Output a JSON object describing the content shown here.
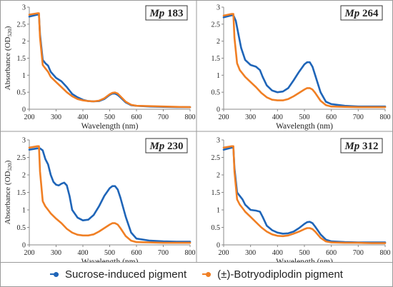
{
  "chart_data": [
    {
      "type": "line",
      "title_italic": "Mp",
      "title_num": "183",
      "xlabel": "Wavelength (nm)",
      "ylabel": "Absorbance (OD",
      "ylabel_sub": "520",
      "ylabel_end": ")",
      "xlim": [
        200,
        800
      ],
      "ylim": [
        0,
        3
      ],
      "xticks": [
        "200",
        "300",
        "400",
        "500",
        "600",
        "700",
        "800"
      ],
      "yticks": [
        "0",
        "0.5",
        "1",
        "1.5",
        "2",
        "2.5",
        "3"
      ],
      "series": [
        {
          "name": "Sucrose-induced pigment",
          "x": [
            200,
            230,
            236,
            240,
            250,
            260,
            270,
            280,
            300,
            320,
            340,
            360,
            380,
            400,
            420,
            440,
            460,
            480,
            500,
            510,
            520,
            530,
            540,
            560,
            580,
            600,
            650,
            700,
            750,
            800
          ],
          "y": [
            2.72,
            2.78,
            2.78,
            2.2,
            1.45,
            1.35,
            1.28,
            1.1,
            0.92,
            0.82,
            0.65,
            0.45,
            0.35,
            0.28,
            0.24,
            0.23,
            0.24,
            0.3,
            0.42,
            0.46,
            0.46,
            0.42,
            0.35,
            0.2,
            0.12,
            0.1,
            0.08,
            0.07,
            0.06,
            0.06
          ]
        },
        {
          "name": "(±)-Botryodiplodin pigment",
          "x": [
            200,
            230,
            236,
            240,
            250,
            260,
            270,
            280,
            300,
            320,
            340,
            360,
            380,
            400,
            420,
            440,
            460,
            480,
            500,
            510,
            520,
            530,
            540,
            560,
            580,
            600,
            650,
            700,
            750,
            800
          ],
          "y": [
            2.78,
            2.82,
            2.82,
            2.1,
            1.3,
            1.2,
            1.1,
            0.95,
            0.8,
            0.65,
            0.5,
            0.38,
            0.3,
            0.26,
            0.24,
            0.23,
            0.25,
            0.32,
            0.44,
            0.48,
            0.49,
            0.46,
            0.38,
            0.22,
            0.13,
            0.1,
            0.09,
            0.08,
            0.07,
            0.06
          ]
        }
      ]
    },
    {
      "type": "line",
      "title_italic": "Mp",
      "title_num": "264",
      "xlabel": "Wavelength (nm)",
      "ylabel": "",
      "xlim": [
        200,
        800
      ],
      "ylim": [
        0,
        3
      ],
      "xticks": [
        "200",
        "300",
        "400",
        "500",
        "600",
        "700",
        "800"
      ],
      "yticks": [
        "0",
        "0.5",
        "1",
        "1.5",
        "2",
        "2.5",
        "3"
      ],
      "series": [
        {
          "name": "Sucrose-induced pigment",
          "x": [
            200,
            230,
            236,
            245,
            255,
            265,
            280,
            300,
            320,
            335,
            345,
            360,
            380,
            400,
            420,
            440,
            460,
            480,
            500,
            510,
            520,
            530,
            540,
            560,
            580,
            600,
            650,
            700,
            750,
            800
          ],
          "y": [
            2.7,
            2.76,
            2.76,
            2.6,
            2.2,
            1.8,
            1.45,
            1.3,
            1.25,
            1.15,
            0.95,
            0.7,
            0.55,
            0.5,
            0.52,
            0.62,
            0.85,
            1.1,
            1.32,
            1.38,
            1.38,
            1.25,
            1.0,
            0.5,
            0.22,
            0.15,
            0.1,
            0.08,
            0.08,
            0.08
          ]
        },
        {
          "name": "(±)-Botryodiplodin pigment",
          "x": [
            200,
            230,
            236,
            240,
            250,
            260,
            270,
            280,
            300,
            320,
            340,
            360,
            380,
            400,
            420,
            440,
            460,
            480,
            500,
            510,
            520,
            530,
            540,
            560,
            580,
            600,
            650,
            700,
            750,
            800
          ],
          "y": [
            2.75,
            2.8,
            2.8,
            2.1,
            1.35,
            1.15,
            1.05,
            0.95,
            0.8,
            0.65,
            0.48,
            0.35,
            0.28,
            0.26,
            0.26,
            0.3,
            0.38,
            0.48,
            0.58,
            0.62,
            0.62,
            0.58,
            0.48,
            0.25,
            0.12,
            0.08,
            0.07,
            0.06,
            0.06,
            0.06
          ]
        }
      ]
    },
    {
      "type": "line",
      "title_italic": "Mp",
      "title_num": "230",
      "xlabel": "Wavelength (nm)",
      "ylabel": "Absorbance (OD",
      "ylabel_sub": "520",
      "ylabel_end": ")",
      "xlim": [
        200,
        800
      ],
      "ylim": [
        0,
        3
      ],
      "xticks": [
        "200",
        "300",
        "400",
        "500",
        "600",
        "700",
        "800"
      ],
      "yticks": [
        "0",
        "0.5",
        "1",
        "1.5",
        "2",
        "2.5",
        "3"
      ],
      "series": [
        {
          "name": "Sucrose-induced pigment",
          "x": [
            200,
            230,
            240,
            250,
            260,
            270,
            280,
            290,
            300,
            310,
            320,
            330,
            340,
            350,
            360,
            380,
            400,
            420,
            440,
            460,
            480,
            500,
            510,
            520,
            530,
            540,
            560,
            580,
            600,
            650,
            700,
            750,
            800
          ],
          "y": [
            2.72,
            2.76,
            2.76,
            2.7,
            2.45,
            2.3,
            2.0,
            1.8,
            1.72,
            1.7,
            1.75,
            1.78,
            1.7,
            1.4,
            1.0,
            0.78,
            0.7,
            0.72,
            0.85,
            1.1,
            1.4,
            1.62,
            1.68,
            1.68,
            1.58,
            1.35,
            0.8,
            0.35,
            0.18,
            0.12,
            0.1,
            0.09,
            0.09
          ]
        },
        {
          "name": "(±)-Botryodiplodin pigment",
          "x": [
            200,
            230,
            236,
            240,
            250,
            260,
            270,
            280,
            300,
            320,
            340,
            360,
            380,
            400,
            420,
            440,
            460,
            480,
            500,
            510,
            520,
            530,
            540,
            560,
            580,
            600,
            650,
            700,
            750,
            800
          ],
          "y": [
            2.78,
            2.82,
            2.82,
            2.1,
            1.25,
            1.1,
            1.0,
            0.9,
            0.75,
            0.62,
            0.46,
            0.35,
            0.29,
            0.27,
            0.27,
            0.3,
            0.38,
            0.48,
            0.58,
            0.62,
            0.62,
            0.58,
            0.48,
            0.25,
            0.12,
            0.08,
            0.07,
            0.06,
            0.06,
            0.06
          ]
        }
      ]
    },
    {
      "type": "line",
      "title_italic": "Mp",
      "title_num": "312",
      "xlabel": "Wavelength (nm)",
      "ylabel": "",
      "xlim": [
        200,
        800
      ],
      "ylim": [
        0,
        3
      ],
      "xticks": [
        "200",
        "300",
        "400",
        "500",
        "600",
        "700",
        "800"
      ],
      "yticks": [
        "0",
        "0.5",
        "1",
        "1.5",
        "2",
        "2.5",
        "3"
      ],
      "series": [
        {
          "name": "Sucrose-induced pigment",
          "x": [
            200,
            230,
            236,
            240,
            250,
            260,
            270,
            280,
            300,
            320,
            335,
            345,
            360,
            380,
            400,
            420,
            440,
            460,
            480,
            500,
            510,
            520,
            530,
            540,
            560,
            580,
            600,
            650,
            700,
            750,
            800
          ],
          "y": [
            2.72,
            2.78,
            2.78,
            2.2,
            1.5,
            1.4,
            1.3,
            1.15,
            1.0,
            0.98,
            0.95,
            0.8,
            0.55,
            0.42,
            0.35,
            0.32,
            0.33,
            0.38,
            0.48,
            0.6,
            0.65,
            0.66,
            0.62,
            0.52,
            0.3,
            0.15,
            0.1,
            0.08,
            0.07,
            0.07,
            0.07
          ]
        },
        {
          "name": "(±)-Botryodiplodin pigment",
          "x": [
            200,
            230,
            236,
            240,
            250,
            260,
            270,
            280,
            300,
            320,
            340,
            360,
            380,
            400,
            420,
            440,
            460,
            480,
            500,
            510,
            520,
            530,
            540,
            560,
            580,
            600,
            650,
            700,
            750,
            800
          ],
          "y": [
            2.78,
            2.82,
            2.82,
            2.1,
            1.3,
            1.15,
            1.05,
            0.95,
            0.8,
            0.65,
            0.5,
            0.38,
            0.3,
            0.26,
            0.25,
            0.27,
            0.32,
            0.38,
            0.45,
            0.48,
            0.48,
            0.45,
            0.38,
            0.2,
            0.1,
            0.07,
            0.06,
            0.06,
            0.05,
            0.05
          ]
        }
      ]
    }
  ],
  "legend": {
    "items": [
      {
        "label": "Sucrose-induced pigment",
        "color": "#1f65b8"
      },
      {
        "label": "(±)-Botryodiplodin pigment",
        "color": "#f07f24"
      }
    ]
  },
  "colors": {
    "series": [
      "#1f65b8",
      "#f07f24"
    ]
  }
}
